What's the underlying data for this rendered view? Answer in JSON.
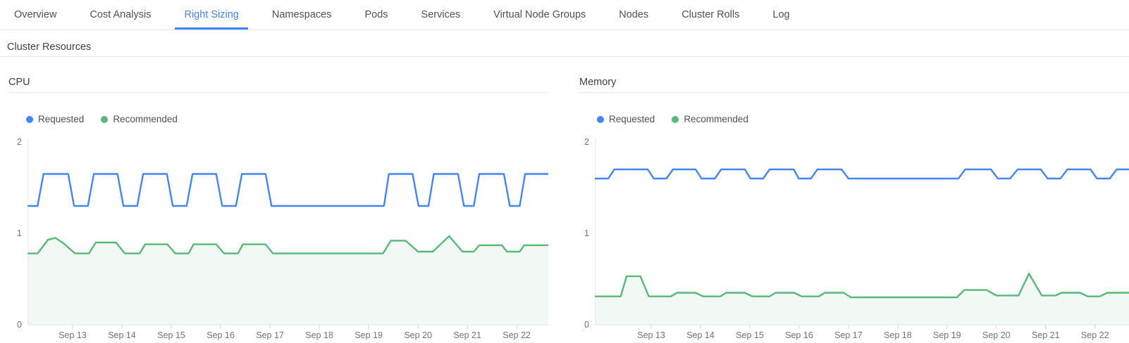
{
  "tab_bar": {
    "active_color": "#4285f4",
    "tabs": [
      {
        "label": "Overview",
        "active": false
      },
      {
        "label": "Cost Analysis",
        "active": false
      },
      {
        "label": "Right Sizing",
        "active": true
      },
      {
        "label": "Namespaces",
        "active": false
      },
      {
        "label": "Pods",
        "active": false
      },
      {
        "label": "Services",
        "active": false
      },
      {
        "label": "Virtual Node Groups",
        "active": false
      },
      {
        "label": "Nodes",
        "active": false
      },
      {
        "label": "Cluster Rolls",
        "active": false
      },
      {
        "label": "Log",
        "active": false
      }
    ]
  },
  "section": {
    "title": "Cluster Resources"
  },
  "chart_data": [
    {
      "type": "line",
      "title": "CPU",
      "xlabel": "",
      "ylabel": "",
      "ylim": [
        0,
        2
      ],
      "y_ticks": [
        0,
        1,
        2
      ],
      "grid": false,
      "legend_position": "top-left",
      "x_unit": "days, 0 = Sep 13",
      "x_range": [
        -0.9,
        9.64
      ],
      "x_tick_positions": [
        0,
        1,
        2,
        3,
        4,
        5,
        6,
        7,
        8,
        9
      ],
      "x_tick_labels": [
        "Sep 13",
        "Sep 14",
        "Sep 15",
        "Sep 16",
        "Sep 17",
        "Sep 18",
        "Sep 19",
        "Sep 20",
        "Sep 21",
        "Sep 22"
      ],
      "series": [
        {
          "name": "Requested",
          "color": "#4285f4",
          "area_fill": false,
          "points": [
            [
              -0.9,
              1.3
            ],
            [
              -0.71,
              1.3
            ],
            [
              -0.59,
              1.65
            ],
            [
              -0.09,
              1.65
            ],
            [
              0.03,
              1.3
            ],
            [
              0.31,
              1.3
            ],
            [
              0.43,
              1.65
            ],
            [
              0.91,
              1.65
            ],
            [
              1.03,
              1.3
            ],
            [
              1.31,
              1.3
            ],
            [
              1.43,
              1.65
            ],
            [
              1.91,
              1.65
            ],
            [
              2.03,
              1.3
            ],
            [
              2.31,
              1.3
            ],
            [
              2.43,
              1.65
            ],
            [
              2.91,
              1.65
            ],
            [
              3.03,
              1.3
            ],
            [
              3.31,
              1.3
            ],
            [
              3.43,
              1.65
            ],
            [
              3.91,
              1.65
            ],
            [
              4.03,
              1.3
            ],
            [
              6.31,
              1.3
            ],
            [
              6.41,
              1.65
            ],
            [
              6.89,
              1.65
            ],
            [
              7.01,
              1.3
            ],
            [
              7.21,
              1.3
            ],
            [
              7.32,
              1.65
            ],
            [
              7.81,
              1.65
            ],
            [
              7.93,
              1.3
            ],
            [
              8.13,
              1.3
            ],
            [
              8.24,
              1.65
            ],
            [
              8.74,
              1.65
            ],
            [
              8.86,
              1.3
            ],
            [
              9.06,
              1.3
            ],
            [
              9.17,
              1.65
            ],
            [
              9.64,
              1.65
            ]
          ]
        },
        {
          "name": "Recommended",
          "color": "#57b878",
          "area_fill": true,
          "fill_color": "rgba(87,184,120,0.08)",
          "points": [
            [
              -0.9,
              0.78
            ],
            [
              -0.71,
              0.78
            ],
            [
              -0.5,
              0.93
            ],
            [
              -0.35,
              0.95
            ],
            [
              -0.18,
              0.89
            ],
            [
              0.05,
              0.78
            ],
            [
              0.33,
              0.78
            ],
            [
              0.47,
              0.9
            ],
            [
              0.88,
              0.9
            ],
            [
              1.06,
              0.78
            ],
            [
              1.36,
              0.78
            ],
            [
              1.47,
              0.88
            ],
            [
              1.92,
              0.88
            ],
            [
              2.08,
              0.78
            ],
            [
              2.35,
              0.78
            ],
            [
              2.45,
              0.88
            ],
            [
              2.91,
              0.88
            ],
            [
              3.07,
              0.78
            ],
            [
              3.35,
              0.78
            ],
            [
              3.45,
              0.88
            ],
            [
              3.91,
              0.88
            ],
            [
              4.06,
              0.78
            ],
            [
              6.29,
              0.78
            ],
            [
              6.45,
              0.92
            ],
            [
              6.75,
              0.92
            ],
            [
              7.0,
              0.8
            ],
            [
              7.3,
              0.8
            ],
            [
              7.63,
              0.97
            ],
            [
              7.9,
              0.8
            ],
            [
              8.13,
              0.8
            ],
            [
              8.24,
              0.87
            ],
            [
              8.7,
              0.87
            ],
            [
              8.8,
              0.8
            ],
            [
              9.06,
              0.8
            ],
            [
              9.15,
              0.87
            ],
            [
              9.64,
              0.87
            ]
          ]
        }
      ]
    },
    {
      "type": "line",
      "title": "Memory",
      "xlabel": "",
      "ylabel": "",
      "ylim": [
        0,
        2
      ],
      "y_ticks": [
        0,
        1,
        2
      ],
      "grid": false,
      "legend_position": "top-left",
      "x_unit": "days, 0 = Sep 13",
      "x_range": [
        -1.13,
        9.69
      ],
      "x_tick_positions": [
        0,
        1,
        2,
        3,
        4,
        5,
        6,
        7,
        8,
        9
      ],
      "x_tick_labels": [
        "Sep 13",
        "Sep 14",
        "Sep 15",
        "Sep 16",
        "Sep 17",
        "Sep 18",
        "Sep 19",
        "Sep 20",
        "Sep 21",
        "Sep 22"
      ],
      "series": [
        {
          "name": "Requested",
          "color": "#4285f4",
          "area_fill": false,
          "points": [
            [
              -1.13,
              1.6
            ],
            [
              -0.87,
              1.6
            ],
            [
              -0.75,
              1.7
            ],
            [
              -0.07,
              1.7
            ],
            [
              0.05,
              1.6
            ],
            [
              0.31,
              1.6
            ],
            [
              0.44,
              1.7
            ],
            [
              0.9,
              1.7
            ],
            [
              1.02,
              1.6
            ],
            [
              1.29,
              1.6
            ],
            [
              1.42,
              1.7
            ],
            [
              1.9,
              1.7
            ],
            [
              2.01,
              1.6
            ],
            [
              2.27,
              1.6
            ],
            [
              2.4,
              1.7
            ],
            [
              2.89,
              1.7
            ],
            [
              2.99,
              1.6
            ],
            [
              3.24,
              1.6
            ],
            [
              3.37,
              1.7
            ],
            [
              3.86,
              1.7
            ],
            [
              4.0,
              1.6
            ],
            [
              6.23,
              1.6
            ],
            [
              6.37,
              1.7
            ],
            [
              6.89,
              1.7
            ],
            [
              7.03,
              1.6
            ],
            [
              7.28,
              1.6
            ],
            [
              7.43,
              1.7
            ],
            [
              7.9,
              1.7
            ],
            [
              8.04,
              1.6
            ],
            [
              8.3,
              1.6
            ],
            [
              8.44,
              1.7
            ],
            [
              8.91,
              1.7
            ],
            [
              9.04,
              1.6
            ],
            [
              9.3,
              1.6
            ],
            [
              9.44,
              1.7
            ],
            [
              9.69,
              1.7
            ]
          ]
        },
        {
          "name": "Recommended",
          "color": "#57b878",
          "area_fill": true,
          "fill_color": "rgba(87,184,120,0.08)",
          "points": [
            [
              -1.13,
              0.31
            ],
            [
              -0.62,
              0.31
            ],
            [
              -0.5,
              0.53
            ],
            [
              -0.22,
              0.53
            ],
            [
              -0.05,
              0.31
            ],
            [
              0.4,
              0.31
            ],
            [
              0.52,
              0.35
            ],
            [
              0.9,
              0.35
            ],
            [
              1.05,
              0.31
            ],
            [
              1.4,
              0.31
            ],
            [
              1.52,
              0.35
            ],
            [
              1.9,
              0.35
            ],
            [
              2.05,
              0.31
            ],
            [
              2.4,
              0.31
            ],
            [
              2.52,
              0.35
            ],
            [
              2.9,
              0.35
            ],
            [
              3.05,
              0.31
            ],
            [
              3.4,
              0.31
            ],
            [
              3.52,
              0.35
            ],
            [
              3.9,
              0.35
            ],
            [
              4.05,
              0.3
            ],
            [
              6.2,
              0.3
            ],
            [
              6.35,
              0.38
            ],
            [
              6.8,
              0.38
            ],
            [
              7.0,
              0.32
            ],
            [
              7.45,
              0.32
            ],
            [
              7.66,
              0.56
            ],
            [
              7.92,
              0.32
            ],
            [
              8.2,
              0.32
            ],
            [
              8.32,
              0.35
            ],
            [
              8.7,
              0.35
            ],
            [
              8.85,
              0.31
            ],
            [
              9.1,
              0.31
            ],
            [
              9.25,
              0.35
            ],
            [
              9.69,
              0.35
            ]
          ]
        }
      ]
    }
  ]
}
